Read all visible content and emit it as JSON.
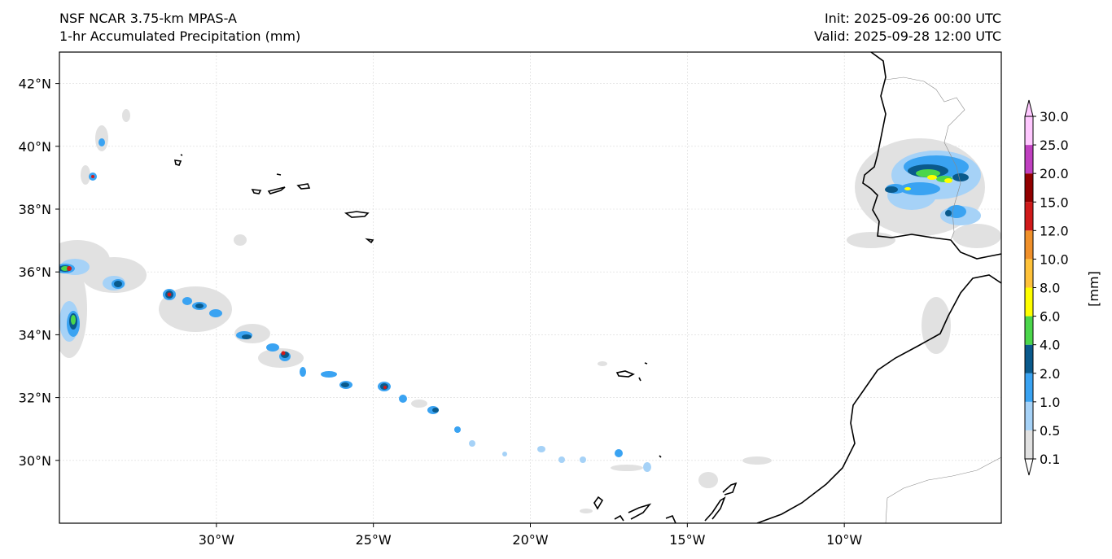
{
  "header": {
    "model": "NSF NCAR 3.75-km MPAS-A",
    "field": "1-hr Accumulated Precipitation (mm)",
    "init": "Init: 2025-09-26 00:00 UTC",
    "valid": "Valid: 2025-09-28 12:00 UTC"
  },
  "map": {
    "lon_range": [
      -35,
      -5
    ],
    "lat_range": [
      28,
      43
    ],
    "lon_ticks": [
      {
        "value": -30,
        "label": "30°W"
      },
      {
        "value": -25,
        "label": "25°W"
      },
      {
        "value": -20,
        "label": "20°W"
      },
      {
        "value": -15,
        "label": "15°W"
      },
      {
        "value": -10,
        "label": "10°W"
      }
    ],
    "lat_ticks": [
      {
        "value": 42,
        "label": "42°N"
      },
      {
        "value": 40,
        "label": "40°N"
      },
      {
        "value": 38,
        "label": "38°N"
      },
      {
        "value": 36,
        "label": "36°N"
      },
      {
        "value": 34,
        "label": "34°N"
      },
      {
        "value": 32,
        "label": "32°N"
      },
      {
        "value": 30,
        "label": "30°N"
      }
    ],
    "gridlines": true
  },
  "colorbar": {
    "unit_label": "[mm]",
    "levels": [
      {
        "label": "0.1",
        "color": "#e1e1e1"
      },
      {
        "label": "0.5",
        "color": "#a6d2f7"
      },
      {
        "label": "1.0",
        "color": "#3aa3f2"
      },
      {
        "label": "2.0",
        "color": "#0a5a8c"
      },
      {
        "label": "4.0",
        "color": "#4bd64b"
      },
      {
        "label": "6.0",
        "color": "#ffff00"
      },
      {
        "label": "8.0",
        "color": "#ffc23a"
      },
      {
        "label": "10.0",
        "color": "#f0902a"
      },
      {
        "label": "12.0",
        "color": "#d01a1a"
      },
      {
        "label": "15.0",
        "color": "#920000"
      },
      {
        "label": "20.0",
        "color": "#c040c0"
      },
      {
        "label": "25.0",
        "color": "#ffc8ff"
      },
      {
        "label": "30.0",
        "color": "#ffc8ff"
      }
    ]
  }
}
